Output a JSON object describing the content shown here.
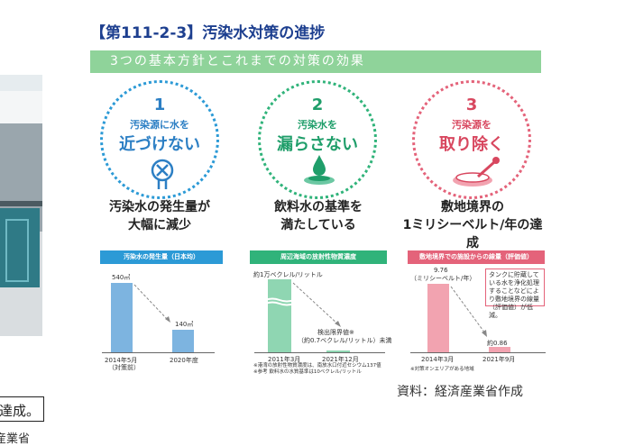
{
  "title": "【第111-2-3】汚染水対策の進捗",
  "banner": "3つの基本方針とこれまでの対策の効果",
  "policies": [
    {
      "number": "1",
      "small": "汚染源に水を",
      "big": "近づけない",
      "headline": [
        "汚染水の発生量が",
        "大幅に減少"
      ],
      "chart_title": "汚染水の発生量（日本均）"
    },
    {
      "number": "2",
      "small": "汚染水を",
      "big": "漏らさない",
      "headline": [
        "飲料水の基準を",
        "満たしている"
      ],
      "chart_title": "周辺海域の放射性物質濃度"
    },
    {
      "number": "3",
      "small": "汚染源を",
      "big": "取り除く",
      "headline": [
        "敷地境界の",
        "1ミリシーベルト/年の達成"
      ],
      "chart_title": "敷地境界での施設からの線量（評価値）"
    }
  ],
  "charts": {
    "c1": {
      "top_label": "540㎥",
      "bottom_label": "140㎥",
      "x1": "2014年5月",
      "x1b": "（対策前）",
      "x2": "2020年度"
    },
    "c2": {
      "top_label": "約1万ベクレル/リットル",
      "low_label": "検出限界値※",
      "low_label2": "（約0.7ベクレル/リットル）未満",
      "x1": "2011年3月",
      "x2": "2021年12月",
      "note1": "※港湾の放射性物質濃度は、南放水口付近セシウム137値",
      "note2": "※参考 飲料水の水質基準は10ベクレル/リットル"
    },
    "c3": {
      "top_label": "9.76",
      "top_label2": "（ミリシーベルト/年）",
      "bottom_label": "約0.86",
      "x1": "2014年3月",
      "x2": "2021年9月",
      "box": "タンクに貯蔵している水を浄化処理することなどにより敷地境界の線量（評価値）が低減。",
      "note": "※対策オンエリアがある地域"
    }
  },
  "chart_data": [
    {
      "type": "bar",
      "categories": [
        "2014年5月",
        "2020年度"
      ],
      "values": [
        540,
        140
      ],
      "ylabel": ""
    },
    {
      "type": "bar",
      "categories": [
        "2011年3月",
        "2021年12月"
      ],
      "values": [
        10000,
        0.7
      ],
      "ylabel": ""
    },
    {
      "type": "bar",
      "categories": [
        "2014年3月",
        "2021年9月"
      ],
      "values": [
        9.76,
        0.86
      ],
      "ylabel": ""
    }
  ],
  "source": "資料：経済産業省作成",
  "left_fragment": "達成。",
  "left_bottom": "産業省"
}
